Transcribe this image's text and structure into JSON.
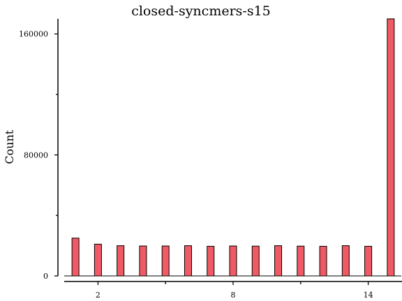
{
  "colors": {
    "bar": "#f05a64",
    "stroke": "#000000"
  },
  "chart_data": {
    "type": "bar",
    "title": "closed-syncmers-s15",
    "xlabel": "",
    "ylabel": "Count",
    "xlim": [
      1,
      15
    ],
    "ylim": [
      0,
      170000
    ],
    "xticks": [
      2,
      8,
      14
    ],
    "xminor_ticks": [
      5,
      11
    ],
    "yticks": [
      0,
      80000,
      160000
    ],
    "yminor_ticks": [
      40000,
      120000
    ],
    "grid": false,
    "x": [
      1,
      2,
      3,
      4,
      5,
      6,
      7,
      8,
      9,
      10,
      11,
      12,
      13,
      14,
      15
    ],
    "values": [
      25000,
      21000,
      20000,
      19800,
      19800,
      20000,
      19600,
      19800,
      19700,
      20000,
      19700,
      19600,
      20000,
      19600,
      170000
    ]
  }
}
